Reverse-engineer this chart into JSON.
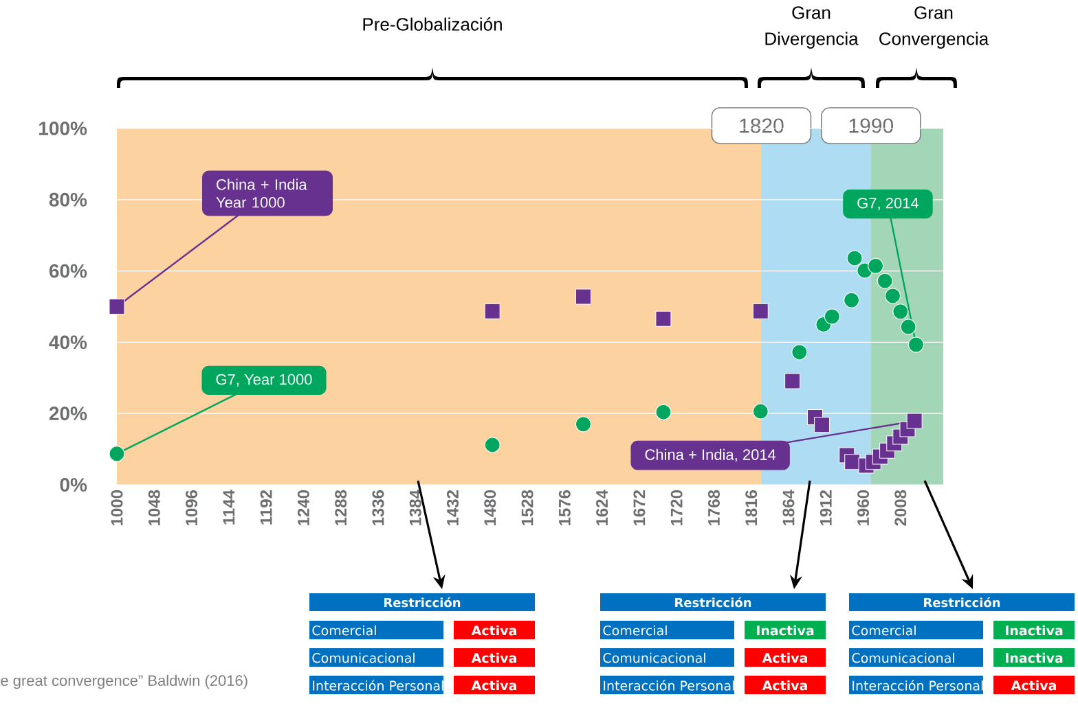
{
  "chart_data": {
    "type": "scatter",
    "xlim": [
      1000,
      2063
    ],
    "ylim": [
      0,
      100
    ],
    "xticks": [
      1000,
      1048,
      1096,
      1144,
      1192,
      1240,
      1288,
      1336,
      1384,
      1432,
      1480,
      1528,
      1576,
      1624,
      1672,
      1720,
      1768,
      1816,
      1864,
      1912,
      1960,
      2008
    ],
    "yticks": [
      {
        "value": 0,
        "label": "0%"
      },
      {
        "value": 20,
        "label": "20%"
      },
      {
        "value": 40,
        "label": "40%"
      },
      {
        "value": 60,
        "label": "60%"
      },
      {
        "value": 80,
        "label": "80%"
      },
      {
        "value": 100,
        "label": "100%"
      }
    ],
    "grid": "y",
    "series": [
      {
        "color": "#66318f",
        "marker": "square",
        "x": [
          1000,
          1483,
          1600,
          1703,
          1828,
          1869,
          1898,
          1907,
          1939,
          1946,
          1955,
          1964,
          1973,
          1982,
          1991,
          2000,
          2008,
          2017,
          2026
        ],
        "values": [
          50,
          48.7,
          52.8,
          46.6,
          48.7,
          29.1,
          19,
          16.8,
          8.3,
          6.4,
          null,
          5.4,
          6.4,
          7.9,
          9.6,
          11.6,
          13.5,
          15.6,
          17.9
        ]
      },
      {
        "color": "#00a65d",
        "marker": "circle",
        "x": [
          1000,
          1483,
          1600,
          1703,
          1828,
          1878,
          1909,
          1920,
          1945,
          1949,
          1962,
          1976,
          1988,
          1998,
          2008,
          2018,
          2028
        ],
        "values": [
          8.7,
          11.2,
          17,
          20.4,
          20.6,
          37.2,
          45,
          47.2,
          51.8,
          63.6,
          60.1,
          61.4,
          57.2,
          53,
          48.6,
          44.3,
          39.3
        ]
      }
    ],
    "bands": [
      {
        "axis": "x",
        "from": 1829,
        "to": 1970,
        "label": "1820",
        "color": "#addcf3"
      },
      {
        "axis": "x",
        "from": 1970,
        "to": 2063,
        "label": "1990",
        "color": "#a3d6b6"
      }
    ],
    "annotations": [
      {
        "text": "China + India Year 1000",
        "x": 1000,
        "y": 50
      },
      {
        "text": "G7, Year 1000",
        "x": 1000,
        "y": 8.7
      },
      {
        "text": "G7, 2014",
        "x": 2028,
        "y": 39.3
      },
      {
        "text": "China + India, 2014",
        "x": 2026,
        "y": 17.9
      },
      "Pre-Globalización",
      "Gran Divergencia",
      "Gran Convergencia",
      "e great convergence” Baldwin (2016)",
      "Restricción",
      "Comercial",
      "Activa",
      "Comunicacional",
      "Activa",
      "Interacción Personal",
      "Activa",
      "Restricción",
      "Comercial",
      "Inactiva",
      "Comunicacional",
      "Activa",
      "Interacción Personal",
      "Activa",
      "Restricción",
      "Comercial",
      "Inactiva",
      "Comunicacional",
      "Inactiva",
      "Interacción Personal",
      "Activa"
    ]
  }
}
